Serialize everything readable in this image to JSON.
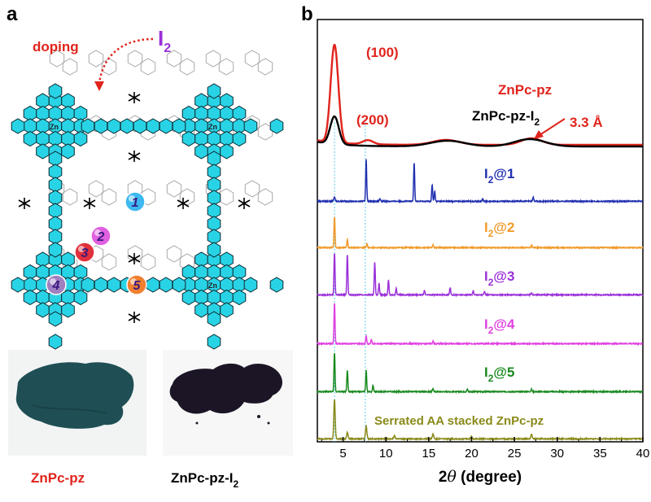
{
  "panels": {
    "a": {
      "letter": "a",
      "doping_label": "doping",
      "dopant_label": "I",
      "dopant_sub": "2",
      "metal_label": "Zn",
      "nitrogen_label": "N",
      "sites": [
        "1",
        "2",
        "3",
        "4",
        "5"
      ],
      "photo_left_caption": "ZnPc-pz",
      "photo_right_caption": "ZnPc-pz-I",
      "photo_right_sub": "2"
    },
    "b": {
      "letter": "b"
    }
  },
  "colors": {
    "framework_cyan": "#29d3e6",
    "red": "#e0241c",
    "purple": "#9b30d9",
    "site1": "#3db8f0",
    "site2": "#e060e0",
    "site3": "#e0303c",
    "site4": "#a080c0",
    "site5": "#f08030",
    "powder_left": "#1f4f55",
    "powder_right": "#1c1526"
  },
  "chart_data": {
    "type": "line",
    "xlabel_prefix": "2",
    "xlabel_theta": "θ",
    "xlabel_suffix": " (degree)",
    "xlim": [
      2,
      40
    ],
    "xticks": [
      "5",
      "10",
      "15",
      "20",
      "25",
      "30",
      "35",
      "40"
    ],
    "reference_lines_x": [
      4.0,
      7.6
    ],
    "annotations": {
      "peak_100": "(100)",
      "peak_200": "(200)",
      "spacing": "3.3 Å"
    },
    "series": [
      {
        "name": "ZnPc-pz",
        "sub": "",
        "color": "#e0241c",
        "peaks": [
          [
            4.0,
            120,
            0.45
          ],
          [
            7.9,
            5,
            0.6
          ],
          [
            17.0,
            6,
            1.5
          ],
          [
            27.0,
            8,
            1.2
          ]
        ]
      },
      {
        "name": "ZnPc-pz-I",
        "sub": "2",
        "color": "#000000",
        "peaks": [
          [
            4.0,
            34,
            0.5
          ],
          [
            17.2,
            7,
            2.0
          ],
          [
            26.8,
            9,
            1.8
          ]
        ]
      },
      {
        "name": "I",
        "sub": "2",
        "suffix": "@1",
        "color": "#2030b0",
        "peaks": [
          [
            4.0,
            5,
            0.08
          ],
          [
            7.7,
            52,
            0.06
          ],
          [
            9.3,
            3,
            0.06
          ],
          [
            13.3,
            48,
            0.06
          ],
          [
            15.4,
            20,
            0.06
          ],
          [
            15.7,
            12,
            0.06
          ],
          [
            21.3,
            3,
            0.06
          ],
          [
            27.2,
            5,
            0.06
          ]
        ]
      },
      {
        "name": "I",
        "sub": "2",
        "suffix": "@2",
        "color": "#f09a2a",
        "peaks": [
          [
            4.0,
            38,
            0.06
          ],
          [
            5.5,
            10,
            0.06
          ],
          [
            7.8,
            5,
            0.06
          ],
          [
            15.5,
            3,
            0.06
          ],
          [
            27.0,
            3,
            0.06
          ]
        ]
      },
      {
        "name": "I",
        "sub": "2",
        "suffix": "@3",
        "color": "#9b30d9",
        "peaks": [
          [
            4.0,
            52,
            0.06
          ],
          [
            5.5,
            50,
            0.06
          ],
          [
            8.7,
            40,
            0.06
          ],
          [
            9.2,
            14,
            0.06
          ],
          [
            10.3,
            18,
            0.06
          ],
          [
            11.2,
            8,
            0.06
          ],
          [
            14.5,
            5,
            0.06
          ],
          [
            17.5,
            9,
            0.06
          ],
          [
            20.2,
            5,
            0.06
          ],
          [
            21.5,
            4,
            0.06
          ],
          [
            27.0,
            3,
            0.06
          ]
        ]
      },
      {
        "name": "I",
        "sub": "2",
        "suffix": "@4",
        "color": "#e040e0",
        "peaks": [
          [
            4.0,
            50,
            0.06
          ],
          [
            7.7,
            10,
            0.06
          ],
          [
            8.3,
            5,
            0.06
          ],
          [
            15.5,
            3,
            0.06
          ]
        ]
      },
      {
        "name": "I",
        "sub": "2",
        "suffix": "@5",
        "color": "#1a8a20",
        "peaks": [
          [
            4.0,
            48,
            0.06
          ],
          [
            5.5,
            26,
            0.06
          ],
          [
            7.7,
            26,
            0.06
          ],
          [
            8.5,
            8,
            0.06
          ],
          [
            15.5,
            4,
            0.06
          ],
          [
            19.5,
            3,
            0.06
          ],
          [
            27.0,
            3,
            0.06
          ]
        ]
      },
      {
        "name": "Serrated AA stacked ZnPc-pz",
        "sub": "",
        "color": "#8a8a1a",
        "peaks": [
          [
            4.0,
            48,
            0.08
          ],
          [
            5.5,
            8,
            0.08
          ],
          [
            7.7,
            16,
            0.08
          ],
          [
            11.0,
            4,
            0.08
          ],
          [
            15.5,
            6,
            0.08
          ],
          [
            20.0,
            3,
            0.08
          ],
          [
            27.0,
            6,
            0.08
          ]
        ]
      }
    ]
  }
}
